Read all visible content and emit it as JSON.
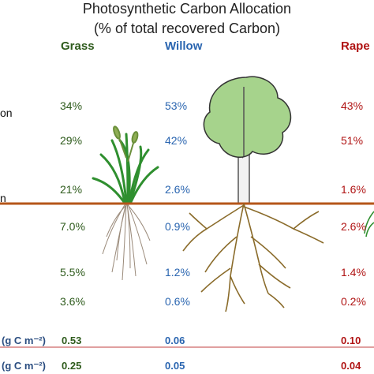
{
  "title": {
    "line1": "Photosynthetic Carbon Allocation",
    "line2": "(% of total recovered Carbon)"
  },
  "columns": {
    "grass": "Grass",
    "willow": "Willow",
    "rape": "Rape"
  },
  "row_labels": {
    "r1": "on",
    "r3": "n"
  },
  "rows": [
    {
      "grass": "34%",
      "willow": "53%",
      "rape": "43%"
    },
    {
      "grass": "29%",
      "willow": "42%",
      "rape": "51%"
    },
    {
      "grass": "21%",
      "willow": "2.6%",
      "rape": "1.6%"
    },
    {
      "grass": "7.0%",
      "willow": "0.9%",
      "rape": "2.6%"
    },
    {
      "grass": "5.5%",
      "willow": "1.2%",
      "rape": "1.4%"
    },
    {
      "grass": "3.6%",
      "willow": "0.6%",
      "rape": "0.2%"
    }
  ],
  "bottom_rows": [
    {
      "label": "(g C m⁻²)",
      "grass": "0.53",
      "willow": "0.06",
      "rape": "0.10"
    },
    {
      "label": "(g C m⁻²)",
      "grass": "0.25",
      "willow": "0.05",
      "rape": "0.04"
    }
  ],
  "colors": {
    "grass": "#2e5b1c",
    "willow": "#2a65b0",
    "rape": "#b01414",
    "soil_line": "#b5561a",
    "separator": "#c04040"
  }
}
